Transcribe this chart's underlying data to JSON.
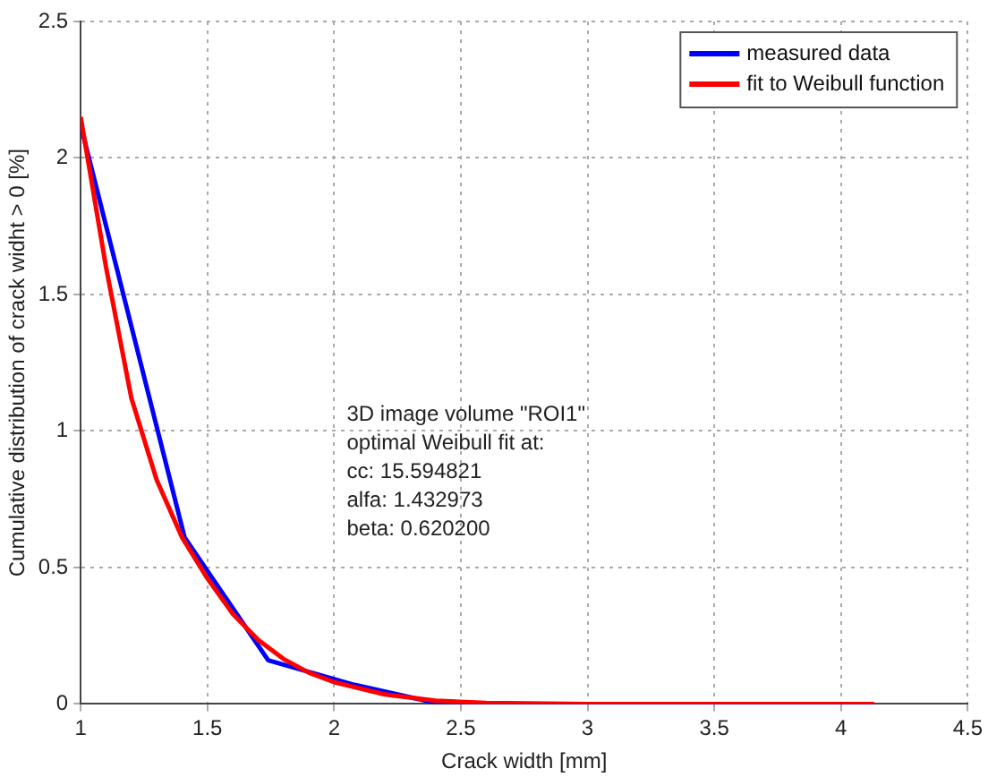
{
  "chart_data": {
    "type": "line",
    "xlabel": "Crack width [mm]",
    "ylabel": "Cumulative distribution of crack widht > 0 [%]",
    "xlim": [
      1,
      4.5
    ],
    "xticks": [
      1,
      1.5,
      2,
      2.5,
      3,
      3.5,
      4,
      4.5
    ],
    "ylim": [
      0,
      2.5
    ],
    "yticks": [
      0,
      0.5,
      1,
      1.5,
      2,
      2.5
    ],
    "grid": true,
    "legend": "top right",
    "line_style": "solid",
    "marker": "none",
    "annotations": [
      "3D image volume \"ROI1\"",
      "optimal Weibull fit at:",
      "cc: 15.594821",
      "alfa: 1.432973",
      "beta: 0.620200"
    ],
    "series": [
      {
        "name": "measured data",
        "color": "#0000ff",
        "x": [
          1,
          1.41,
          1.74,
          2.08,
          2.42,
          4.13
        ],
        "values": [
          2.12,
          0.61,
          0.16,
          0.07,
          0,
          0
        ]
      },
      {
        "name": "fit to Weibull function",
        "color": "#ff0000",
        "x": [
          1,
          1.1,
          1.2,
          1.3,
          1.4,
          1.5,
          1.6,
          1.7,
          1.8,
          1.9,
          2,
          2.2,
          2.4,
          2.6,
          3,
          4.13
        ],
        "values": [
          2.15,
          1.6,
          1.12,
          0.82,
          0.61,
          0.46,
          0.33,
          0.235,
          0.165,
          0.115,
          0.08,
          0.035,
          0.012,
          0.004,
          0,
          0
        ]
      }
    ]
  }
}
